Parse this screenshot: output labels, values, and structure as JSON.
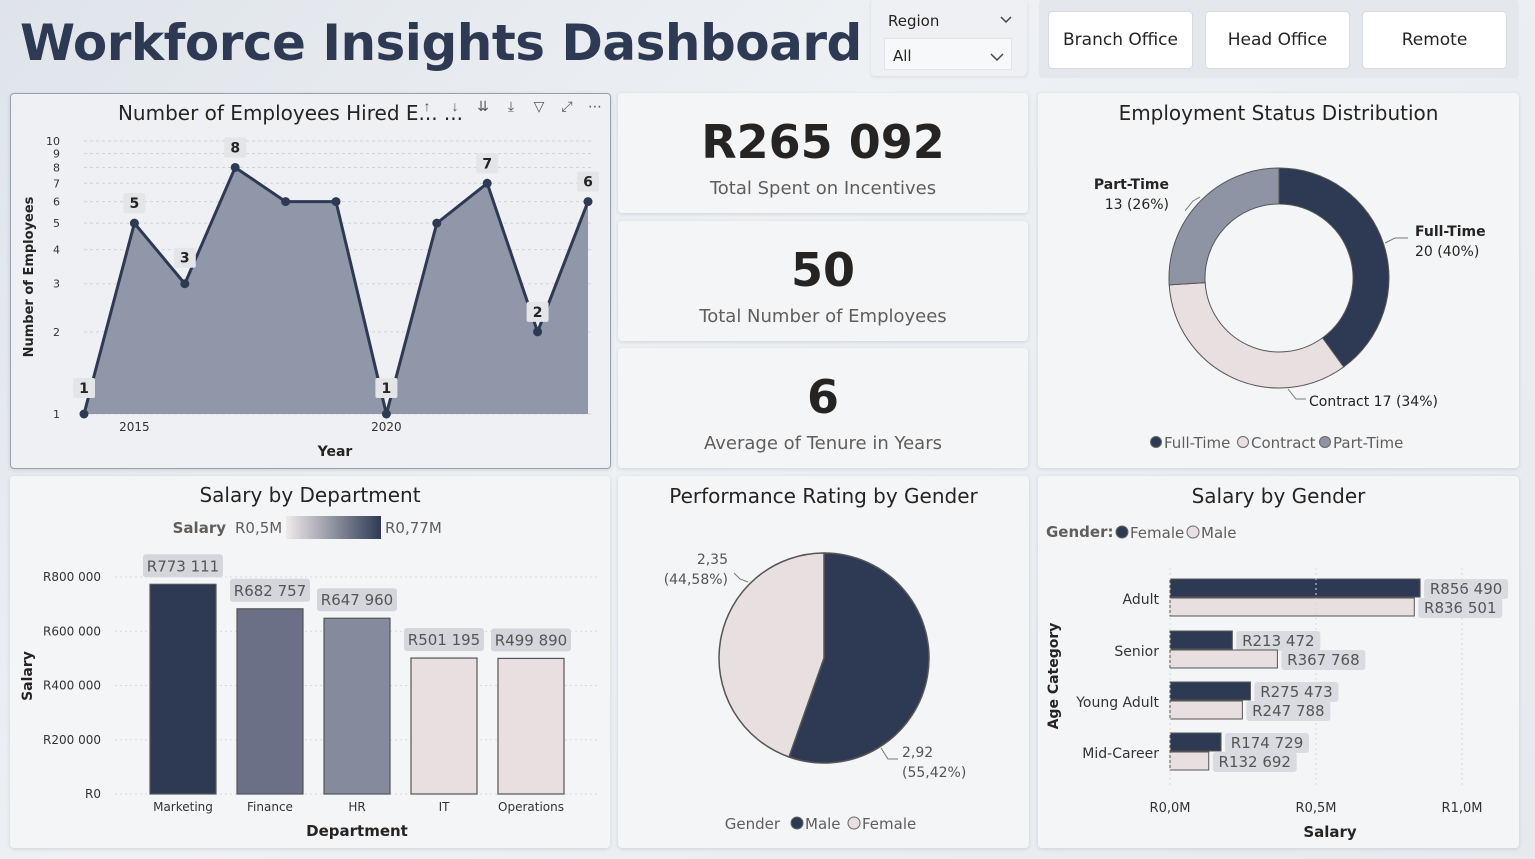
{
  "header": {
    "title": "Workforce Insights Dashboard"
  },
  "region_slicer": {
    "label": "Region",
    "selected": "All"
  },
  "office_buttons": [
    "Branch Office",
    "Head Office",
    "Remote"
  ],
  "kpis": {
    "incentives": {
      "value": "R265 092",
      "label": "Total Spent on Incentives"
    },
    "employees": {
      "value": "50",
      "label": "Total Number of Employees"
    },
    "tenure": {
      "value": "6",
      "label": "Average of Tenure in Years"
    }
  },
  "hired_chart": {
    "title": "Number of Employees Hired E... ...",
    "toolbar_icons": [
      "sort-asc-icon",
      "sort-desc-icon",
      "expand-all-icon",
      "drill-icon",
      "filter-icon",
      "focus-icon",
      "more-icon"
    ]
  },
  "colors": {
    "navy": "#2e3a54",
    "slate": "#6b7086",
    "gray": "#858a9c",
    "blush": "#e8dfe0",
    "area": "#9097a8"
  },
  "chart_data": [
    {
      "type": "area",
      "title": "Number of Employees Hired E... ...",
      "xlabel": "Year",
      "ylabel": "Number of Employees",
      "x": [
        2014,
        2015,
        2016,
        2017,
        2018,
        2019,
        2020,
        2021,
        2022,
        2023,
        2024
      ],
      "values": [
        1,
        5,
        3,
        8,
        6,
        6,
        1,
        5,
        7,
        2,
        6
      ],
      "data_labels": [
        "1",
        "5",
        "3",
        "8",
        "",
        "",
        "1",
        "",
        "7",
        "2",
        "6"
      ],
      "x_ticks": [
        "2015",
        "2020"
      ],
      "y_ticks": [
        "1",
        "2",
        "3",
        "4",
        "5",
        "6",
        "7",
        "8",
        "9",
        "10"
      ],
      "y_scale": "log",
      "ylim": [
        1,
        10
      ]
    },
    {
      "type": "pie",
      "subtype": "donut",
      "title": "Employment Status Distribution",
      "slices": [
        {
          "name": "Full-Time",
          "value": 20,
          "label": "20 (40%)",
          "color": "#2e3a54"
        },
        {
          "name": "Contract",
          "value": 17,
          "label": "Contract 17 (34%)",
          "color": "#e8dfe0"
        },
        {
          "name": "Part-Time",
          "value": 13,
          "label": "13 (26%)",
          "color": "#8f94a4"
        }
      ],
      "legend": [
        "Full-Time",
        "Contract",
        "Part-Time"
      ],
      "legend_position": "bottom"
    },
    {
      "type": "bar",
      "title": "Salary by Department",
      "xlabel": "Department",
      "ylabel": "Salary",
      "categories": [
        "Marketing",
        "Finance",
        "HR",
        "IT",
        "Operations"
      ],
      "values": [
        773111,
        682757,
        647960,
        501195,
        499890
      ],
      "data_labels": [
        "R773 111",
        "R682 757",
        "R647 960",
        "R501 195",
        "R499 890"
      ],
      "y_ticks": [
        "R0",
        "R200 000",
        "R400 000",
        "R600 000",
        "R800 000"
      ],
      "ylim": [
        0,
        800000
      ],
      "color_scale": {
        "label": "Salary",
        "min_label": "R0,5M",
        "max_label": "R0,77M"
      }
    },
    {
      "type": "pie",
      "title": "Performance Rating by Gender",
      "slices": [
        {
          "name": "Male",
          "value": 2.92,
          "label_value": "2,92",
          "label_pct": "(55,42%)",
          "color": "#2e3a54"
        },
        {
          "name": "Female",
          "value": 2.35,
          "label_value": "2,35",
          "label_pct": "(44,58%)",
          "color": "#e8dfe0"
        }
      ],
      "legend_title": "Gender",
      "legend": [
        "Male",
        "Female"
      ],
      "legend_position": "bottom"
    },
    {
      "type": "bar",
      "orientation": "horizontal",
      "title": "Salary by Gender",
      "xlabel": "Salary",
      "ylabel": "Age Category",
      "categories": [
        "Adult",
        "Senior",
        "Young Adult",
        "Mid-Career"
      ],
      "series": [
        {
          "name": "Female",
          "values": [
            856490,
            213472,
            275473,
            174729
          ],
          "labels": [
            "R856 490",
            "R213 472",
            "R275 473",
            "R174 729"
          ],
          "color": "#2e3a54"
        },
        {
          "name": "Male",
          "values": [
            836501,
            367768,
            247788,
            132692
          ],
          "labels": [
            "R836 501",
            "R367 768",
            "R247 788",
            "R132 692"
          ],
          "color": "#e8dfe0"
        }
      ],
      "legend_title": "Gender:",
      "x_ticks": [
        "R0,0M",
        "R0,5M",
        "R1,0M"
      ],
      "xlim": [
        0,
        1000000
      ]
    }
  ]
}
